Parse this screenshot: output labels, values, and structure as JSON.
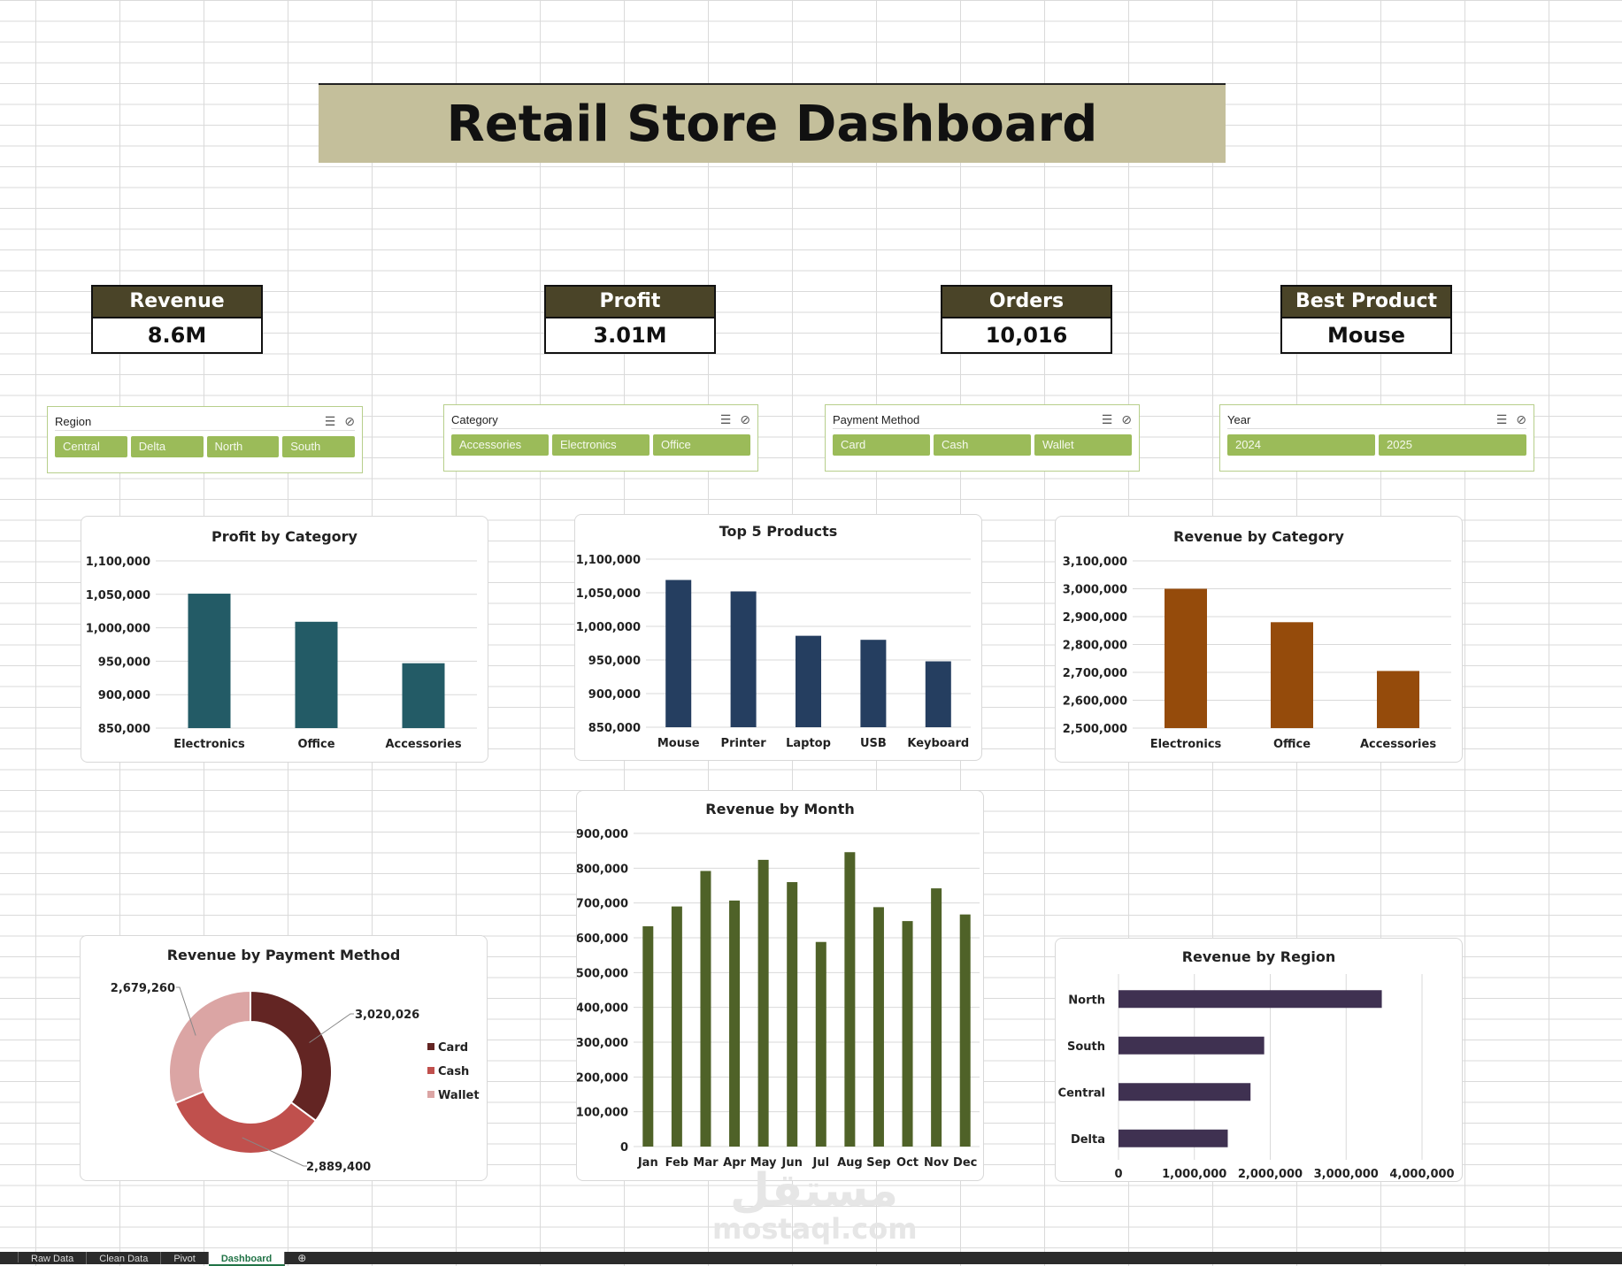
{
  "title": "Retail Store Dashboard",
  "kpis": {
    "revenue": {
      "label": "Revenue",
      "value": "8.6M"
    },
    "profit": {
      "label": "Profit",
      "value": "3.01M"
    },
    "orders": {
      "label": "Orders",
      "value": "10,016"
    },
    "best_product": {
      "label": "Best Product",
      "value": "Mouse"
    }
  },
  "slicers": {
    "region": {
      "title": "Region",
      "items": [
        "Central",
        "Delta",
        "North",
        "South"
      ]
    },
    "category": {
      "title": "Category",
      "items": [
        "Accessories",
        "Electronics",
        "Office"
      ]
    },
    "payment": {
      "title": "Payment Method",
      "items": [
        "Card",
        "Cash",
        "Wallet"
      ]
    },
    "year": {
      "title": "Year",
      "items": [
        "2024",
        "2025"
      ]
    }
  },
  "colors": {
    "profit_bar": "#235b66",
    "top5_bar": "#253e60",
    "revcat_bar": "#954b0b",
    "month_bar": "#4f6228",
    "region_bar": "#3f3151",
    "card": "#632523",
    "cash": "#c0504d",
    "wallet": "#dba5a4"
  },
  "icons": [
    "multi-select-icon",
    "clear-filter-icon"
  ],
  "chart_data": [
    {
      "id": "profit_by_category",
      "type": "bar",
      "title": "Profit by Category",
      "categories": [
        "Electronics",
        "Office",
        "Accessories"
      ],
      "values": [
        1051000,
        1009000,
        947000
      ],
      "ylim": [
        850000,
        1100000
      ],
      "yticks": [
        "1,100,000",
        "1,050,000",
        "1,000,000",
        "950,000",
        "900,000",
        "850,000"
      ]
    },
    {
      "id": "top_5_products",
      "type": "bar",
      "title": "Top 5 Products",
      "categories": [
        "Mouse",
        "Printer",
        "Laptop",
        "USB",
        "Keyboard"
      ],
      "values": [
        1069000,
        1052000,
        986000,
        980000,
        948000
      ],
      "ylim": [
        850000,
        1100000
      ],
      "yticks": [
        "1,100,000",
        "1,050,000",
        "1,000,000",
        "950,000",
        "900,000",
        "850,000"
      ]
    },
    {
      "id": "revenue_by_category",
      "type": "bar",
      "title": "Revenue by Category",
      "categories": [
        "Electronics",
        "Office",
        "Accessories"
      ],
      "values": [
        3000000,
        2880000,
        2705000
      ],
      "ylim": [
        2500000,
        3100000
      ],
      "yticks": [
        "3,100,000",
        "3,000,000",
        "2,900,000",
        "2,800,000",
        "2,700,000",
        "2,600,000",
        "2,500,000"
      ]
    },
    {
      "id": "revenue_by_month",
      "type": "bar",
      "title": "Revenue by Month",
      "categories": [
        "Jan",
        "Feb",
        "Mar",
        "Apr",
        "May",
        "Jun",
        "Jul",
        "Aug",
        "Sep",
        "Oct",
        "Nov",
        "Dec"
      ],
      "values": [
        633000,
        690000,
        792000,
        707000,
        824000,
        760000,
        588000,
        846000,
        688000,
        648000,
        742000,
        667000
      ],
      "ylim": [
        0,
        900000
      ],
      "yticks": [
        "900,000",
        "800,000",
        "700,000",
        "600,000",
        "500,000",
        "400,000",
        "300,000",
        "200,000",
        "100,000",
        "0"
      ]
    },
    {
      "id": "revenue_by_payment_method",
      "type": "pie",
      "title": "Revenue by Payment Method",
      "labels": [
        "Card",
        "Cash",
        "Wallet"
      ],
      "values": [
        3020026,
        2889400,
        2679260
      ],
      "data_labels": [
        "3,020,026",
        "2,889,400",
        "2,679,260"
      ],
      "legend": "right"
    },
    {
      "id": "revenue_by_region",
      "type": "bar",
      "orientation": "horizontal",
      "title": "Revenue by Region",
      "categories": [
        "North",
        "South",
        "Central",
        "Delta"
      ],
      "values": [
        3470000,
        1920000,
        1740000,
        1440000
      ],
      "xlim": [
        0,
        4000000
      ],
      "xticks": [
        "0",
        "1,000,000",
        "2,000,000",
        "3,000,000",
        "4,000,000"
      ]
    }
  ],
  "sheet_tabs": [
    "Raw Data",
    "Clean Data",
    "Pivot",
    "Dashboard"
  ],
  "watermark": {
    "arabic": "مستقل",
    "latin": "mostaql.com"
  }
}
